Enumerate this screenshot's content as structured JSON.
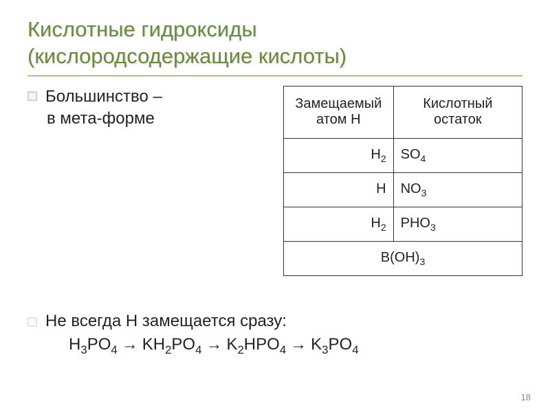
{
  "title_line1": "Кислотные гидроксиды",
  "title_line2": "(кислородсодержащие кислоты)",
  "bullet1a": "Большинство –",
  "bullet1b": "в мета-форме",
  "table": {
    "header_left": "Замещаемый атом Н",
    "header_right": "Кислотный остаток",
    "rows": [
      {
        "h": "H",
        "h_sub": "2",
        "r": "SO",
        "r_sub": "4"
      },
      {
        "h": "H",
        "h_sub": "",
        "r": "NO",
        "r_sub": "3"
      },
      {
        "h": "H",
        "h_sub": "2",
        "r": "PHO",
        "r_sub": "3"
      }
    ],
    "merged": "B(OH)",
    "merged_sub": "3"
  },
  "bullet2": "Не всегда Н замещается сразу:",
  "formula": {
    "p1": "H",
    "p1s": "3",
    "p2": "PO",
    "p2s": "4",
    "arrow": " → ",
    "q1": "KH",
    "q1s": "2",
    "q2": "PO",
    "q2s": "4",
    "r1": "K",
    "r1s": "2",
    "r2": "HPO",
    "r2s": "4",
    "s1": "K",
    "s1s": "3",
    "s2": "PO",
    "s2s": "4"
  },
  "page_number": "18"
}
